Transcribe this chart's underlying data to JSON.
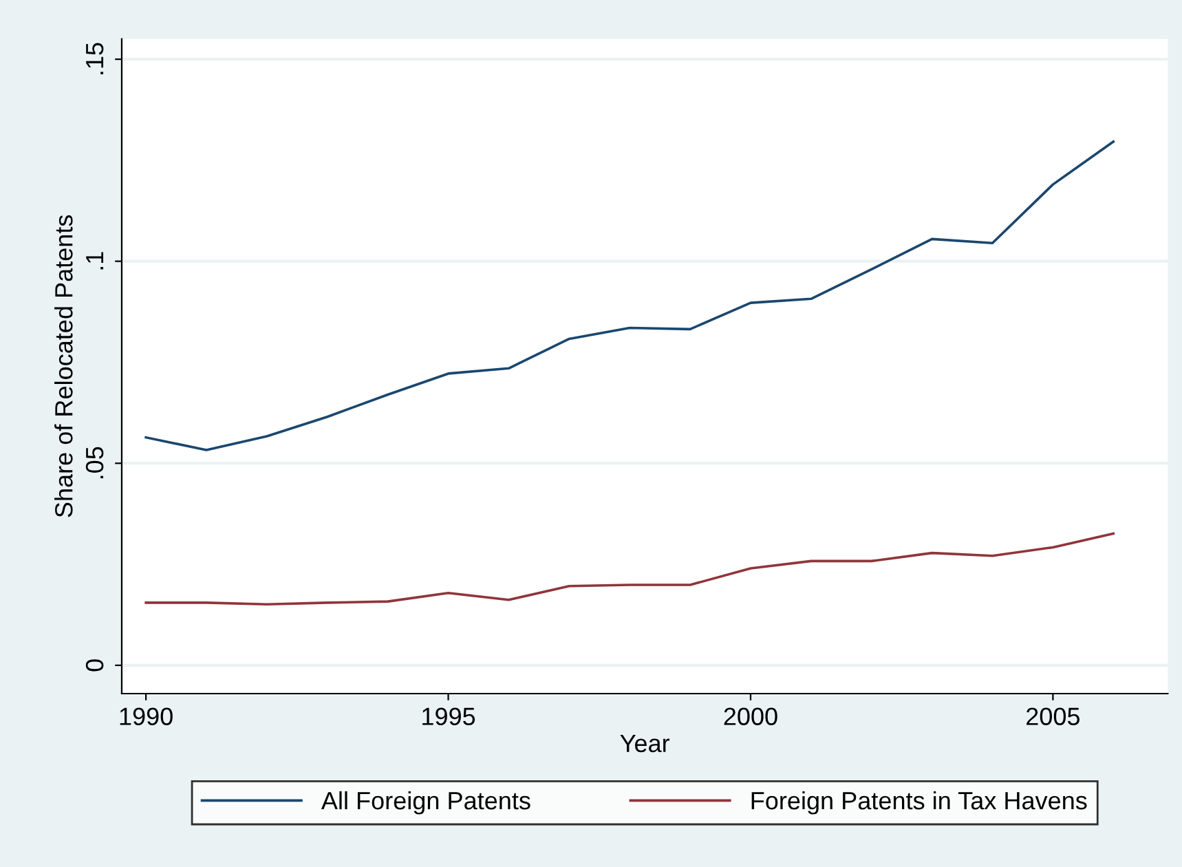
{
  "chart_data": {
    "type": "line",
    "xlabel": "Year",
    "ylabel": "Share of Relocated Patents",
    "x": [
      1990,
      1991,
      1992,
      1993,
      1994,
      1995,
      1996,
      1997,
      1998,
      1999,
      2000,
      2001,
      2002,
      2003,
      2004,
      2005,
      2006
    ],
    "series": [
      {
        "name": "All Foreign Patents",
        "color": "#1a476f",
        "values": [
          0.0564,
          0.0533,
          0.0567,
          0.0615,
          0.067,
          0.0722,
          0.0735,
          0.0808,
          0.0835,
          0.0832,
          0.0897,
          0.0907,
          0.098,
          0.1055,
          0.1045,
          0.119,
          0.1296
        ]
      },
      {
        "name": "Foreign Patents in Tax Havens",
        "color": "#90353b",
        "values": [
          0.0155,
          0.0155,
          0.0151,
          0.0155,
          0.0158,
          0.0179,
          0.0162,
          0.0196,
          0.0199,
          0.0199,
          0.024,
          0.0258,
          0.0258,
          0.0278,
          0.0271,
          0.0292,
          0.0326
        ]
      }
    ],
    "xlim": [
      1989.6,
      2006.9
    ],
    "xticks": [
      1990,
      1995,
      2000,
      2005
    ],
    "ylim": [
      -0.007,
      0.155
    ],
    "yticks": [
      {
        "value": 0,
        "label": "0"
      },
      {
        "value": 0.05,
        "label": ".05"
      },
      {
        "value": 0.1,
        "label": ".1"
      },
      {
        "value": 0.15,
        "label": ".15"
      }
    ],
    "grid": "y",
    "legend": "bottom",
    "marker": "none",
    "line_style": "solid"
  }
}
